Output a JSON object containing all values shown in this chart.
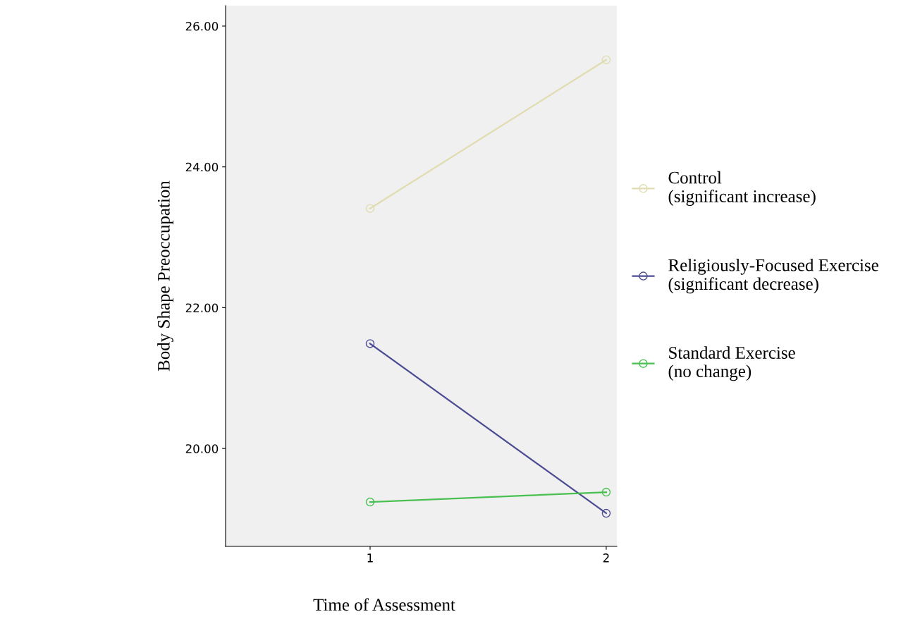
{
  "chart_data": {
    "type": "line",
    "xlabel": "Time of Assessment",
    "ylabel": "Body Shape Preoccupation",
    "x": [
      1,
      2
    ],
    "xlim": [
      0.388,
      2.045
    ],
    "xticks": [
      1,
      2
    ],
    "ylim": [
      18.61,
      26.29
    ],
    "yticks": [
      {
        "value": 20,
        "label": "20.00"
      },
      {
        "value": 22,
        "label": "22.00"
      },
      {
        "value": 24,
        "label": "24.00"
      },
      {
        "value": 26,
        "label": "26.00"
      }
    ],
    "marker": "circle",
    "line_style": "solid",
    "grid": false,
    "legend": "right",
    "series": [
      {
        "name": "Control\n(significant increase)",
        "color": "#e0dcb0",
        "values": [
          23.41,
          25.52
        ]
      },
      {
        "name": "Religiously-Focused Exercise\n(significant decrease)",
        "color": "#4c4c94",
        "values": [
          21.49,
          19.08
        ]
      },
      {
        "name": "Standard Exercise\n(no change)",
        "color": "#48c050",
        "values": [
          19.24,
          19.38
        ]
      }
    ]
  }
}
